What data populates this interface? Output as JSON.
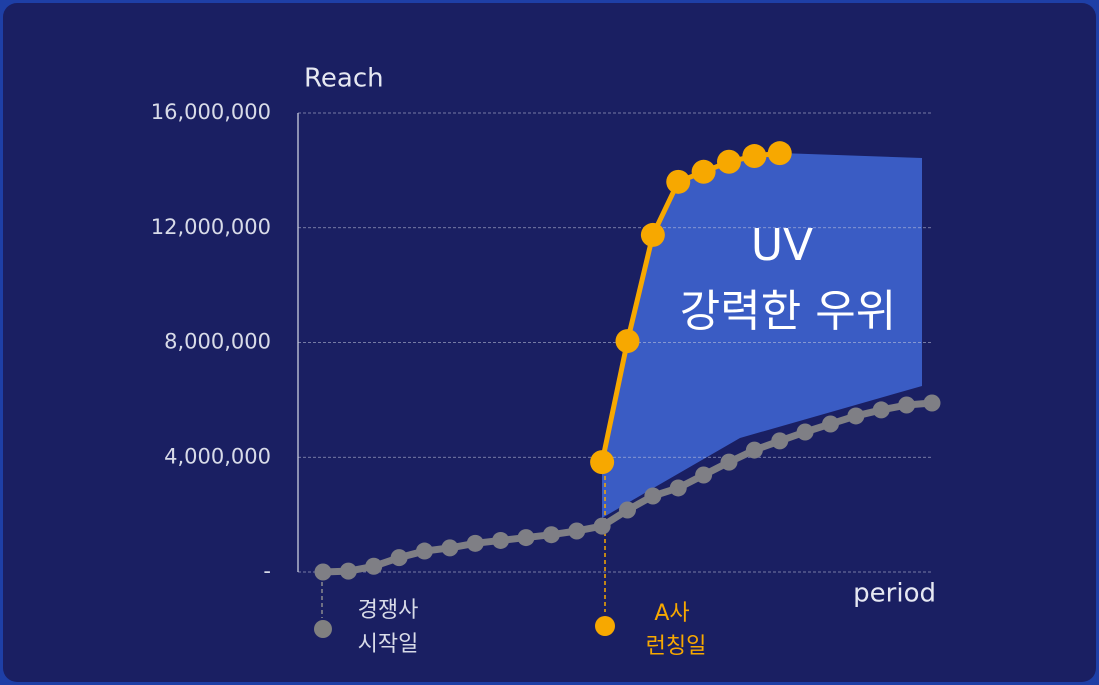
{
  "chart_data": {
    "type": "line",
    "y_label": "Reach",
    "x_label": "period",
    "categories": [
      null,
      null,
      null,
      null,
      null,
      null,
      null,
      null,
      null,
      null,
      null,
      null,
      null,
      null,
      null,
      null,
      null,
      null,
      null,
      null,
      null,
      null,
      null,
      null,
      null
    ],
    "series": [
      {
        "color": "#7f7f85",
        "values": [
          0,
          30000,
          200000,
          500000,
          730000,
          840000,
          1000000,
          1100000,
          1200000,
          1300000,
          1430000,
          1600000,
          2160000,
          2650000,
          2930000,
          3380000,
          3830000,
          4250000,
          4570000,
          4880000,
          5160000,
          5440000,
          5650000,
          5820000,
          5890000
        ]
      },
      {
        "color": "#f7a800",
        "values": [
          null,
          null,
          null,
          null,
          null,
          null,
          null,
          null,
          null,
          null,
          null,
          3830000,
          8050000,
          11750000,
          13600000,
          13950000,
          14300000,
          14500000,
          14600000,
          null,
          null,
          null,
          null,
          null,
          null
        ]
      }
    ],
    "ylim": [
      0,
      16000000
    ],
    "yticks": [
      {
        "value": 0,
        "label": "-"
      },
      {
        "value": 4000000,
        "label": "4,000,000"
      },
      {
        "value": 8000000,
        "label": "8,000,000"
      },
      {
        "value": 12000000,
        "label": "12,000,000"
      },
      {
        "value": 16000000,
        "label": "16,000,000"
      }
    ],
    "grid": true,
    "annotation": [
      "UV",
      "강력한 우위"
    ],
    "markers": [
      [
        "경쟁사",
        "시작일"
      ],
      [
        "A사",
        "런칭일"
      ]
    ]
  }
}
